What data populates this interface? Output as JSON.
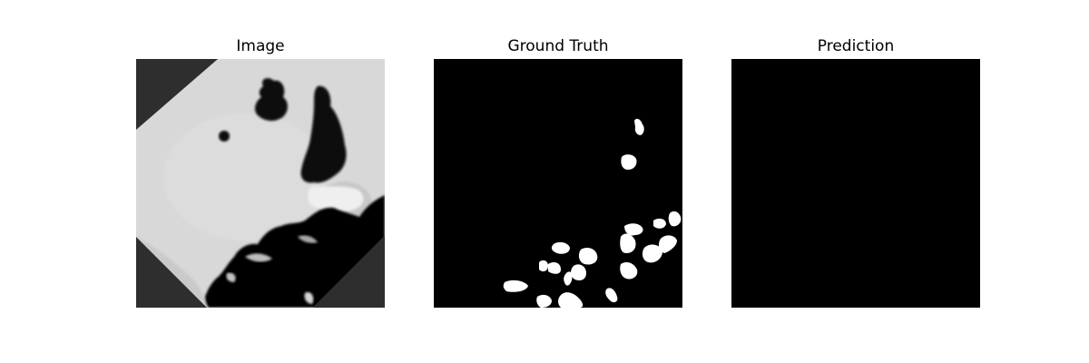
{
  "panels": [
    {
      "title": "Image"
    },
    {
      "title": "Ground Truth"
    },
    {
      "title": "Prediction"
    }
  ]
}
